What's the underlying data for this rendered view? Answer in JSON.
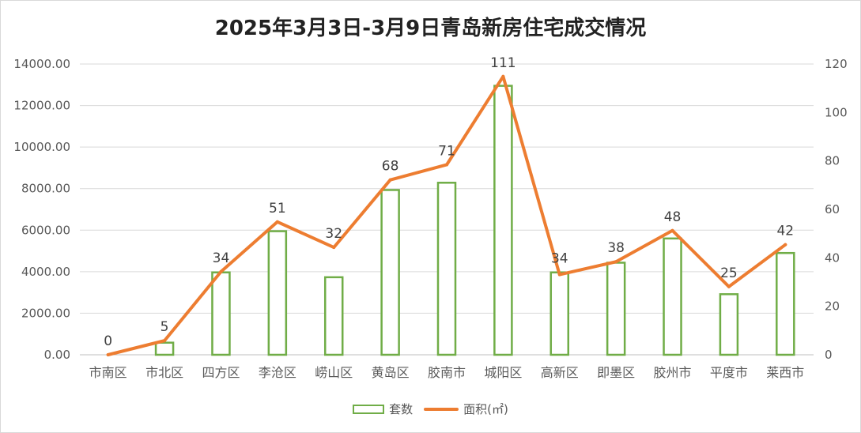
{
  "chart_data": {
    "type": "bar",
    "title": "2025年3月3日-3月9日青岛新房住宅成交情况",
    "categories": [
      "市南区",
      "市北区",
      "四方区",
      "李沧区",
      "崂山区",
      "黄岛区",
      "胶南市",
      "城阳区",
      "高新区",
      "即墨区",
      "胶州市",
      "平度市",
      "莱西市"
    ],
    "series": [
      {
        "name": "套数",
        "type": "bar",
        "axis": "right",
        "color": "#70ad47",
        "values": [
          0,
          5,
          34,
          51,
          32,
          68,
          71,
          111,
          34,
          38,
          48,
          25,
          42
        ],
        "labels": [
          "0",
          "5",
          "34",
          "51",
          "32",
          "68",
          "71",
          "111",
          "34",
          "38",
          "48",
          "25",
          "42"
        ]
      },
      {
        "name": "面积(㎡)",
        "type": "line",
        "axis": "left",
        "color": "#ed7d31",
        "values": [
          0,
          680,
          4000,
          6400,
          5170,
          8420,
          9150,
          13400,
          3860,
          4480,
          5980,
          3280,
          5300
        ]
      }
    ],
    "left_axis": {
      "ylim": [
        0,
        14000
      ],
      "ticks": [
        "0.00",
        "2000.00",
        "4000.00",
        "6000.00",
        "8000.00",
        "10000.00",
        "12000.00",
        "14000.00"
      ]
    },
    "right_axis": {
      "ylim": [
        0,
        120
      ],
      "ticks": [
        "0",
        "20",
        "40",
        "60",
        "80",
        "100",
        "120"
      ]
    },
    "grid": true,
    "legend_position": "bottom"
  }
}
